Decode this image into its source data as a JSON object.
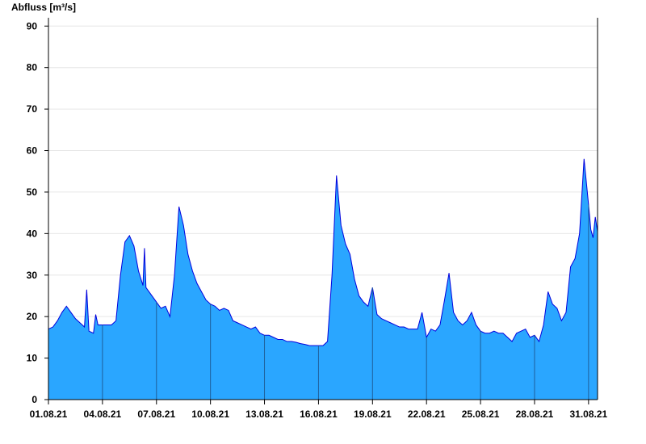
{
  "chart_data": {
    "type": "area",
    "title": "",
    "ylabel": "Abfluss [m³/s]",
    "xlabel": "",
    "ylim": [
      0,
      92
    ],
    "xlim": [
      "2021-08-01",
      "2021-08-31T12:00"
    ],
    "grid": true,
    "color_fill": "#2aa6ff",
    "color_line": "#0000dd",
    "yticks": [
      0,
      10,
      20,
      30,
      40,
      50,
      60,
      70,
      80,
      90
    ],
    "xticks": [
      "01.08.21",
      "04.08.21",
      "07.08.21",
      "10.08.21",
      "13.08.21",
      "16.08.21",
      "19.08.21",
      "22.08.21",
      "25.08.21",
      "28.08.21",
      "31.08.21"
    ],
    "series": [
      {
        "values": [
          [
            "2021-08-01T00:00",
            17.0
          ],
          [
            "2021-08-01T06:00",
            17.5
          ],
          [
            "2021-08-01T12:00",
            19.0
          ],
          [
            "2021-08-01T18:00",
            21.0
          ],
          [
            "2021-08-02T00:00",
            22.5
          ],
          [
            "2021-08-02T06:00",
            21.0
          ],
          [
            "2021-08-02T12:00",
            19.5
          ],
          [
            "2021-08-02T18:00",
            18.5
          ],
          [
            "2021-08-03T00:00",
            17.5
          ],
          [
            "2021-08-03T03:00",
            26.5
          ],
          [
            "2021-08-03T06:00",
            16.5
          ],
          [
            "2021-08-03T12:00",
            16.0
          ],
          [
            "2021-08-03T15:00",
            20.5
          ],
          [
            "2021-08-03T18:00",
            18.0
          ],
          [
            "2021-08-04T00:00",
            18.0
          ],
          [
            "2021-08-04T06:00",
            18.0
          ],
          [
            "2021-08-04T12:00",
            18.0
          ],
          [
            "2021-08-04T18:00",
            19.0
          ],
          [
            "2021-08-05T00:00",
            30.0
          ],
          [
            "2021-08-05T06:00",
            38.0
          ],
          [
            "2021-08-05T12:00",
            39.5
          ],
          [
            "2021-08-05T18:00",
            37.0
          ],
          [
            "2021-08-06T00:00",
            31.0
          ],
          [
            "2021-08-06T06:00",
            27.5
          ],
          [
            "2021-08-06T08:00",
            36.5
          ],
          [
            "2021-08-06T10:00",
            27.0
          ],
          [
            "2021-08-06T18:00",
            25.0
          ],
          [
            "2021-08-07T00:00",
            23.5
          ],
          [
            "2021-08-07T06:00",
            22.0
          ],
          [
            "2021-08-07T12:00",
            22.5
          ],
          [
            "2021-08-07T18:00",
            20.0
          ],
          [
            "2021-08-08T00:00",
            30.0
          ],
          [
            "2021-08-08T06:00",
            46.5
          ],
          [
            "2021-08-08T12:00",
            42.0
          ],
          [
            "2021-08-08T18:00",
            35.0
          ],
          [
            "2021-08-09T00:00",
            31.0
          ],
          [
            "2021-08-09T06:00",
            28.0
          ],
          [
            "2021-08-09T12:00",
            26.0
          ],
          [
            "2021-08-09T18:00",
            24.0
          ],
          [
            "2021-08-10T00:00",
            23.0
          ],
          [
            "2021-08-10T06:00",
            22.5
          ],
          [
            "2021-08-10T12:00",
            21.5
          ],
          [
            "2021-08-10T18:00",
            22.0
          ],
          [
            "2021-08-11T00:00",
            21.5
          ],
          [
            "2021-08-11T06:00",
            19.0
          ],
          [
            "2021-08-11T12:00",
            18.5
          ],
          [
            "2021-08-11T18:00",
            18.0
          ],
          [
            "2021-08-12T00:00",
            17.5
          ],
          [
            "2021-08-12T06:00",
            17.0
          ],
          [
            "2021-08-12T12:00",
            17.5
          ],
          [
            "2021-08-12T18:00",
            16.0
          ],
          [
            "2021-08-13T00:00",
            15.5
          ],
          [
            "2021-08-13T06:00",
            15.5
          ],
          [
            "2021-08-13T12:00",
            15.0
          ],
          [
            "2021-08-13T18:00",
            14.5
          ],
          [
            "2021-08-14T00:00",
            14.5
          ],
          [
            "2021-08-14T06:00",
            14.0
          ],
          [
            "2021-08-14T12:00",
            14.0
          ],
          [
            "2021-08-14T18:00",
            13.8
          ],
          [
            "2021-08-15T00:00",
            13.5
          ],
          [
            "2021-08-15T06:00",
            13.3
          ],
          [
            "2021-08-15T12:00",
            13.0
          ],
          [
            "2021-08-15T18:00",
            13.0
          ],
          [
            "2021-08-16T00:00",
            13.0
          ],
          [
            "2021-08-16T06:00",
            13.0
          ],
          [
            "2021-08-16T12:00",
            14.0
          ],
          [
            "2021-08-16T18:00",
            30.0
          ],
          [
            "2021-08-17T00:00",
            54.0
          ],
          [
            "2021-08-17T06:00",
            42.0
          ],
          [
            "2021-08-17T12:00",
            37.5
          ],
          [
            "2021-08-17T18:00",
            35.0
          ],
          [
            "2021-08-18T00:00",
            29.0
          ],
          [
            "2021-08-18T06:00",
            25.0
          ],
          [
            "2021-08-18T12:00",
            23.5
          ],
          [
            "2021-08-18T18:00",
            22.5
          ],
          [
            "2021-08-19T00:00",
            27.0
          ],
          [
            "2021-08-19T06:00",
            20.5
          ],
          [
            "2021-08-19T12:00",
            19.5
          ],
          [
            "2021-08-19T18:00",
            19.0
          ],
          [
            "2021-08-20T00:00",
            18.5
          ],
          [
            "2021-08-20T06:00",
            18.0
          ],
          [
            "2021-08-20T12:00",
            17.5
          ],
          [
            "2021-08-20T18:00",
            17.5
          ],
          [
            "2021-08-21T00:00",
            17.0
          ],
          [
            "2021-08-21T06:00",
            17.0
          ],
          [
            "2021-08-21T12:00",
            17.0
          ],
          [
            "2021-08-21T18:00",
            21.0
          ],
          [
            "2021-08-22T00:00",
            15.0
          ],
          [
            "2021-08-22T06:00",
            17.0
          ],
          [
            "2021-08-22T12:00",
            16.5
          ],
          [
            "2021-08-22T18:00",
            18.0
          ],
          [
            "2021-08-23T00:00",
            24.0
          ],
          [
            "2021-08-23T06:00",
            30.5
          ],
          [
            "2021-08-23T12:00",
            21.0
          ],
          [
            "2021-08-23T18:00",
            19.0
          ],
          [
            "2021-08-24T00:00",
            18.0
          ],
          [
            "2021-08-24T06:00",
            19.0
          ],
          [
            "2021-08-24T12:00",
            21.0
          ],
          [
            "2021-08-24T18:00",
            18.0
          ],
          [
            "2021-08-25T00:00",
            16.5
          ],
          [
            "2021-08-25T06:00",
            16.0
          ],
          [
            "2021-08-25T12:00",
            16.0
          ],
          [
            "2021-08-25T18:00",
            16.5
          ],
          [
            "2021-08-26T00:00",
            16.0
          ],
          [
            "2021-08-26T06:00",
            16.0
          ],
          [
            "2021-08-26T12:00",
            15.0
          ],
          [
            "2021-08-26T18:00",
            14.0
          ],
          [
            "2021-08-27T00:00",
            16.0
          ],
          [
            "2021-08-27T06:00",
            16.5
          ],
          [
            "2021-08-27T12:00",
            17.0
          ],
          [
            "2021-08-27T18:00",
            15.0
          ],
          [
            "2021-08-28T00:00",
            15.5
          ],
          [
            "2021-08-28T06:00",
            14.0
          ],
          [
            "2021-08-28T12:00",
            18.0
          ],
          [
            "2021-08-28T18:00",
            26.0
          ],
          [
            "2021-08-29T00:00",
            23.0
          ],
          [
            "2021-08-29T06:00",
            22.0
          ],
          [
            "2021-08-29T12:00",
            19.0
          ],
          [
            "2021-08-29T18:00",
            21.0
          ],
          [
            "2021-08-30T00:00",
            32.0
          ],
          [
            "2021-08-30T06:00",
            34.0
          ],
          [
            "2021-08-30T12:00",
            40.0
          ],
          [
            "2021-08-30T18:00",
            58.0
          ],
          [
            "2021-08-31T00:00",
            47.0
          ],
          [
            "2021-08-31T03:00",
            41.0
          ],
          [
            "2021-08-31T06:00",
            39.0
          ],
          [
            "2021-08-31T09:00",
            44.0
          ],
          [
            "2021-08-31T12:00",
            40.5
          ]
        ]
      }
    ]
  }
}
